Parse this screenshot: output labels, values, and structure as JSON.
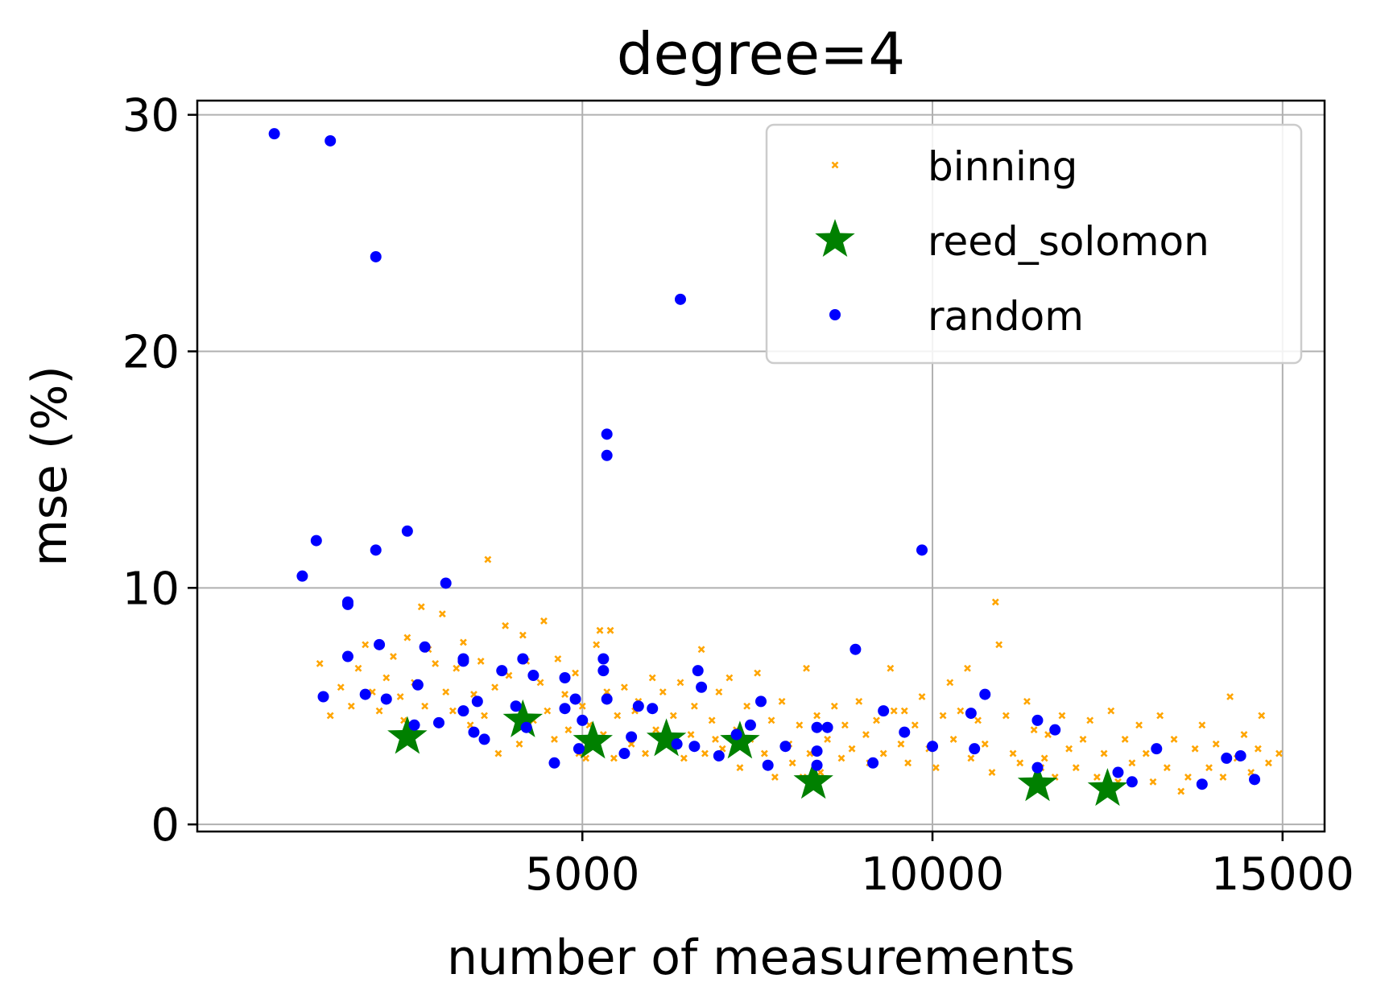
{
  "chart_data": {
    "type": "scatter",
    "title": "degree=4",
    "xlabel": "number of measurements",
    "ylabel": "mse (%)",
    "xlim": [
      -500,
      15600
    ],
    "ylim": [
      -0.3,
      30.6
    ],
    "xticks": [
      5000,
      10000,
      15000
    ],
    "yticks": [
      0,
      10,
      20,
      30
    ],
    "grid": true,
    "legend_position": "top-right",
    "series": [
      {
        "name": "binning",
        "marker": "x",
        "color": "#FFA500",
        "points": [
          [
            1250,
            6.8
          ],
          [
            1400,
            4.6
          ],
          [
            1550,
            5.8
          ],
          [
            1700,
            5.0
          ],
          [
            1800,
            6.6
          ],
          [
            1900,
            7.6
          ],
          [
            2000,
            5.6
          ],
          [
            2100,
            4.8
          ],
          [
            2200,
            6.2
          ],
          [
            2300,
            7.1
          ],
          [
            2400,
            5.4
          ],
          [
            2450,
            4.4
          ],
          [
            2500,
            7.9
          ],
          [
            2600,
            6.0
          ],
          [
            2700,
            9.2
          ],
          [
            2750,
            5.0
          ],
          [
            2800,
            7.4
          ],
          [
            2900,
            6.8
          ],
          [
            3000,
            8.9
          ],
          [
            3050,
            5.6
          ],
          [
            3150,
            4.8
          ],
          [
            3200,
            6.6
          ],
          [
            3300,
            7.7
          ],
          [
            3400,
            4.2
          ],
          [
            3450,
            5.5
          ],
          [
            3550,
            6.9
          ],
          [
            3600,
            4.6
          ],
          [
            3650,
            11.2
          ],
          [
            3750,
            5.8
          ],
          [
            3800,
            3.0
          ],
          [
            3900,
            8.4
          ],
          [
            3950,
            6.3
          ],
          [
            4050,
            5.0
          ],
          [
            4100,
            3.4
          ],
          [
            4150,
            8.0
          ],
          [
            4200,
            6.9
          ],
          [
            4300,
            4.4
          ],
          [
            4400,
            6.0
          ],
          [
            4450,
            8.6
          ],
          [
            4500,
            4.8
          ],
          [
            4600,
            3.6
          ],
          [
            4650,
            7.0
          ],
          [
            4750,
            5.5
          ],
          [
            4800,
            4.0
          ],
          [
            4900,
            6.4
          ],
          [
            4950,
            3.0
          ],
          [
            5000,
            5.0
          ],
          [
            5050,
            2.8
          ],
          [
            5100,
            4.2
          ],
          [
            5200,
            7.6
          ],
          [
            5250,
            8.2
          ],
          [
            5300,
            3.8
          ],
          [
            5350,
            5.6
          ],
          [
            5400,
            8.2
          ],
          [
            5450,
            2.8
          ],
          [
            5500,
            4.6
          ],
          [
            5600,
            5.8
          ],
          [
            5700,
            3.4
          ],
          [
            5750,
            4.8
          ],
          [
            5800,
            5.2
          ],
          [
            5900,
            3.0
          ],
          [
            6000,
            6.2
          ],
          [
            6050,
            4.0
          ],
          [
            6150,
            5.6
          ],
          [
            6250,
            3.6
          ],
          [
            6300,
            4.6
          ],
          [
            6400,
            6.0
          ],
          [
            6450,
            2.8
          ],
          [
            6550,
            3.8
          ],
          [
            6600,
            5.0
          ],
          [
            6700,
            7.4
          ],
          [
            6750,
            3.0
          ],
          [
            6850,
            4.4
          ],
          [
            6950,
            5.6
          ],
          [
            7000,
            3.2
          ],
          [
            7100,
            6.2
          ],
          [
            7200,
            4.0
          ],
          [
            7250,
            2.4
          ],
          [
            7350,
            5.0
          ],
          [
            7400,
            3.6
          ],
          [
            7500,
            6.4
          ],
          [
            7600,
            3.0
          ],
          [
            7700,
            4.4
          ],
          [
            7750,
            2.0
          ],
          [
            7850,
            5.2
          ],
          [
            7950,
            3.4
          ],
          [
            8000,
            2.6
          ],
          [
            8100,
            4.2
          ],
          [
            8200,
            6.6
          ],
          [
            8250,
            3.0
          ],
          [
            8350,
            4.6
          ],
          [
            8400,
            2.2
          ],
          [
            8500,
            3.6
          ],
          [
            8600,
            5.0
          ],
          [
            8700,
            2.8
          ],
          [
            8750,
            4.2
          ],
          [
            8850,
            3.2
          ],
          [
            8950,
            5.2
          ],
          [
            9050,
            3.8
          ],
          [
            9100,
            2.6
          ],
          [
            9200,
            4.4
          ],
          [
            9300,
            3.0
          ],
          [
            9400,
            6.6
          ],
          [
            9450,
            4.8
          ],
          [
            9550,
            3.4
          ],
          [
            9650,
            2.6
          ],
          [
            9750,
            4.2
          ],
          [
            9850,
            5.4
          ],
          [
            9950,
            3.2
          ],
          [
            10050,
            2.4
          ],
          [
            10150,
            4.6
          ],
          [
            10250,
            6.0
          ],
          [
            10300,
            3.6
          ],
          [
            10400,
            4.8
          ],
          [
            10500,
            6.6
          ],
          [
            10550,
            2.8
          ],
          [
            10650,
            4.4
          ],
          [
            10750,
            3.4
          ],
          [
            10850,
            2.2
          ],
          [
            10900,
            9.4
          ],
          [
            10950,
            7.6
          ],
          [
            11050,
            4.6
          ],
          [
            11150,
            3.0
          ],
          [
            11250,
            2.6
          ],
          [
            11350,
            5.2
          ],
          [
            11450,
            4.0
          ],
          [
            11550,
            2.4
          ],
          [
            11650,
            3.8
          ],
          [
            11750,
            2.0
          ],
          [
            11850,
            4.6
          ],
          [
            11950,
            3.2
          ],
          [
            12050,
            2.4
          ],
          [
            12150,
            3.6
          ],
          [
            12250,
            4.4
          ],
          [
            12350,
            2.0
          ],
          [
            12450,
            3.0
          ],
          [
            12550,
            4.8
          ],
          [
            12650,
            1.8
          ],
          [
            12750,
            3.6
          ],
          [
            12850,
            2.6
          ],
          [
            12950,
            4.2
          ],
          [
            13050,
            3.0
          ],
          [
            13150,
            1.8
          ],
          [
            13250,
            4.6
          ],
          [
            13350,
            2.4
          ],
          [
            13450,
            3.6
          ],
          [
            13550,
            1.4
          ],
          [
            13650,
            2.0
          ],
          [
            13750,
            3.2
          ],
          [
            13850,
            4.2
          ],
          [
            13950,
            2.4
          ],
          [
            14050,
            3.4
          ],
          [
            14150,
            2.0
          ],
          [
            14250,
            5.4
          ],
          [
            14350,
            2.8
          ],
          [
            14450,
            3.8
          ],
          [
            14550,
            2.2
          ],
          [
            14650,
            3.2
          ],
          [
            14700,
            4.6
          ],
          [
            14800,
            2.6
          ],
          [
            14950,
            3.0
          ],
          [
            6900,
            3.6
          ],
          [
            8150,
            2.0
          ],
          [
            9600,
            4.8
          ],
          [
            11600,
            2.8
          ]
        ]
      },
      {
        "name": "reed_solomon",
        "marker": "star",
        "color": "#008000",
        "points": [
          [
            2500,
            3.7
          ],
          [
            4150,
            4.4
          ],
          [
            5150,
            3.5
          ],
          [
            6200,
            3.6
          ],
          [
            7250,
            3.5
          ],
          [
            8300,
            1.8
          ],
          [
            11500,
            1.7
          ],
          [
            12500,
            1.5
          ]
        ]
      },
      {
        "name": "random",
        "marker": "circle",
        "color": "#0000FF",
        "points": [
          [
            600,
            29.2
          ],
          [
            1400,
            28.9
          ],
          [
            2050,
            24.0
          ],
          [
            1200,
            12.0
          ],
          [
            2500,
            12.4
          ],
          [
            1000,
            10.5
          ],
          [
            2050,
            11.6
          ],
          [
            3050,
            10.2
          ],
          [
            1650,
            9.4
          ],
          [
            1650,
            9.3
          ],
          [
            1650,
            7.1
          ],
          [
            2100,
            7.6
          ],
          [
            2750,
            7.5
          ],
          [
            3300,
            7.0
          ],
          [
            3300,
            6.9
          ],
          [
            1300,
            5.4
          ],
          [
            1900,
            5.5
          ],
          [
            2200,
            5.3
          ],
          [
            2650,
            5.9
          ],
          [
            2600,
            4.2
          ],
          [
            2950,
            4.3
          ],
          [
            3300,
            4.8
          ],
          [
            3450,
            3.9
          ],
          [
            3500,
            5.2
          ],
          [
            3600,
            3.6
          ],
          [
            3850,
            6.5
          ],
          [
            4050,
            5.0
          ],
          [
            4150,
            7.0
          ],
          [
            4200,
            4.1
          ],
          [
            4300,
            6.3
          ],
          [
            4600,
            2.6
          ],
          [
            4750,
            4.9
          ],
          [
            4750,
            6.2
          ],
          [
            4900,
            5.3
          ],
          [
            5000,
            4.4
          ],
          [
            4950,
            3.2
          ],
          [
            5300,
            6.5
          ],
          [
            5300,
            7.0
          ],
          [
            5350,
            5.3
          ],
          [
            5350,
            16.5
          ],
          [
            5350,
            15.6
          ],
          [
            5600,
            3.0
          ],
          [
            5700,
            3.7
          ],
          [
            5800,
            5.0
          ],
          [
            6000,
            4.9
          ],
          [
            6350,
            3.4
          ],
          [
            6400,
            22.2
          ],
          [
            6600,
            3.3
          ],
          [
            6650,
            6.5
          ],
          [
            6700,
            5.8
          ],
          [
            6950,
            2.9
          ],
          [
            7200,
            3.8
          ],
          [
            7400,
            4.2
          ],
          [
            7550,
            5.2
          ],
          [
            7650,
            2.5
          ],
          [
            7900,
            3.3
          ],
          [
            8350,
            4.1
          ],
          [
            8350,
            3.1
          ],
          [
            8350,
            2.5
          ],
          [
            8500,
            4.1
          ],
          [
            8900,
            7.4
          ],
          [
            9150,
            2.6
          ],
          [
            9300,
            4.8
          ],
          [
            9600,
            3.9
          ],
          [
            9850,
            11.6
          ],
          [
            10000,
            3.3
          ],
          [
            10550,
            4.7
          ],
          [
            10600,
            3.2
          ],
          [
            10750,
            5.5
          ],
          [
            11500,
            4.4
          ],
          [
            11500,
            2.4
          ],
          [
            11750,
            4.0
          ],
          [
            12650,
            2.2
          ],
          [
            12850,
            1.8
          ],
          [
            13200,
            3.2
          ],
          [
            13850,
            1.7
          ],
          [
            14200,
            2.8
          ],
          [
            14400,
            2.9
          ],
          [
            14600,
            1.9
          ]
        ]
      }
    ]
  }
}
